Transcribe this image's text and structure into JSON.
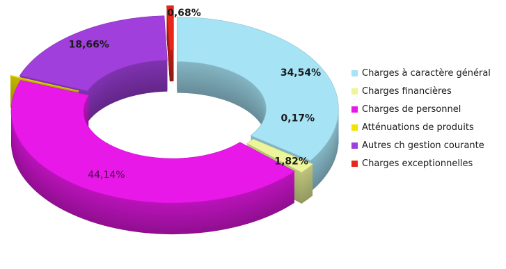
{
  "chart_data": {
    "type": "pie",
    "style": "3d-exploded-doughnut",
    "title": "",
    "categories": [
      "Charges à caractère général",
      "Charges financières",
      "Charges de personnel",
      "Atténuations de produits",
      "Autres ch gestion courante",
      "Charges exceptionnelles"
    ],
    "values": [
      34.54,
      1.82,
      44.14,
      0.17,
      18.66,
      0.68
    ],
    "value_labels": [
      "34,54%",
      "1,82%",
      "44,14%",
      "0,17%",
      "18,66%",
      "0,68%"
    ],
    "colors": [
      "#a6e3f5",
      "#edf59a",
      "#e818e8",
      "#f3e300",
      "#a03fdc",
      "#e8261c"
    ],
    "legend_position": "right",
    "grid": false
  }
}
